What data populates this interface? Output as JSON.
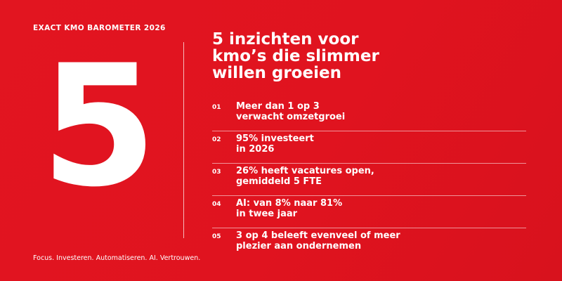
{
  "eyebrow": "EXACT KMO BAROMETER 2026",
  "big_number": "5",
  "tagline": "Focus. Investeren. Automatiseren. AI. Vertrouwen.",
  "headline": "5 inzichten voor\nkmo’s die slimmer\nwillen groeien",
  "insights": [
    {
      "num": "01",
      "text": "Meer dan 1 op 3\nverwacht omzetgroei"
    },
    {
      "num": "02",
      "text": "95% investeert\nin 2026"
    },
    {
      "num": "03",
      "text": "26% heeft vacatures open,\ngemiddeld 5 FTE"
    },
    {
      "num": "04",
      "text": "AI: van 8% naar 81%\nin twee jaar"
    },
    {
      "num": "05",
      "text": "3 op 4 beleeft evenveel of meer\nplezier aan ondernemen"
    }
  ],
  "colors": {
    "background": "#E0131F",
    "text": "#FFFFFF"
  }
}
